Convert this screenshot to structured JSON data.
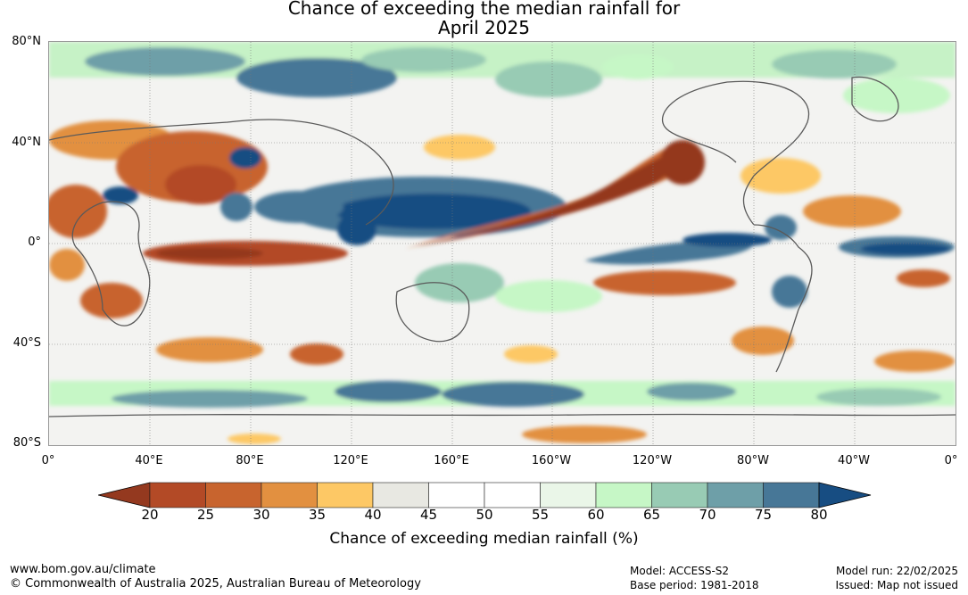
{
  "title": {
    "line1": "Chance of exceeding the median rainfall for",
    "line2": "April 2025"
  },
  "map": {
    "latitude_labels": [
      "80°N",
      "40°N",
      "0°",
      "40°S",
      "80°S"
    ],
    "longitude_labels": [
      "0°",
      "40°E",
      "80°E",
      "120°E",
      "160°E",
      "160°W",
      "120°W",
      "80°W",
      "40°W",
      "0°"
    ]
  },
  "colorbar": {
    "label": "Chance of exceeding median rainfall (%)",
    "ticks": [
      "20",
      "25",
      "30",
      "35",
      "40",
      "45",
      "50",
      "55",
      "60",
      "65",
      "70",
      "75",
      "80"
    ],
    "colors": [
      "#b34a26",
      "#c8642e",
      "#e29040",
      "#fdc865",
      "#e8e8e2",
      "#ffffff",
      "#ffffff",
      "#eaf6e8",
      "#c6f7c6",
      "#98cbb4",
      "#6e9fa8",
      "#477797"
    ],
    "below_color": "#94391f",
    "above_color": "#174d82"
  },
  "footer": {
    "website": "www.bom.gov.au/climate",
    "copyright": "© Commonwealth of Australia 2025, Australian Bureau of Meteorology",
    "model": "Model: ACCESS-S2",
    "base_period": "Base period: 1981-2018",
    "model_run": "Model run: 22/02/2025",
    "issued": "Issued: Map not issued"
  }
}
